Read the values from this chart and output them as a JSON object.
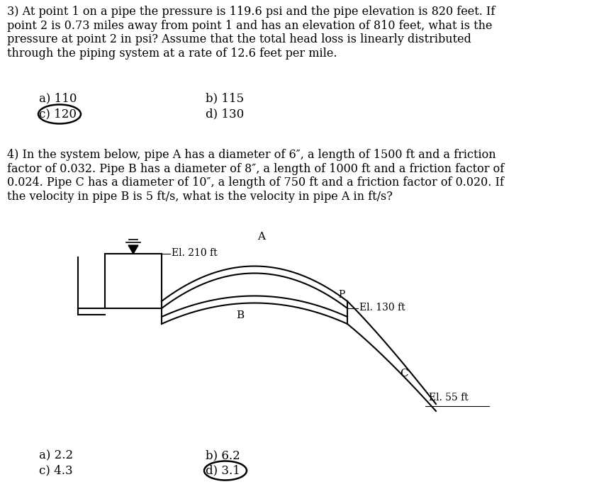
{
  "bg_color": "#ffffff",
  "q3_text": "3) At point 1 on a pipe the pressure is 119.6 psi and the pipe elevation is 820 feet. If\npoint 2 is 0.73 miles away from point 1 and has an elevation of 810 feet, what is the\npressure at point 2 in psi? Assume that the total head loss is linearly distributed\nthrough the piping system at a rate of 12.6 feet per mile.",
  "q4_text": "4) In the system below, pipe A has a diameter of 6″, a length of 1500 ft and a friction\nfactor of 0.032. Pipe B has a diameter of 8″, a length of 1000 ft and a friction factor of\n0.024. Pipe C has a diameter of 10″, a length of 750 ft and a friction factor of 0.020. If\nthe velocity in pipe B is 5 ft/s, what is the velocity in pipe A in ft/s?",
  "el_210": "El. 210 ft",
  "el_130": "El. 130 ft",
  "el_55": "El. 55 ft",
  "label_A": "A",
  "label_B": "B",
  "label_P": "P",
  "label_C": "C",
  "font_size_body": 11.5,
  "font_size_ans": 12,
  "font_size_diagram": 10,
  "diagram_color": "#000000",
  "q3_a": "a) 110",
  "q3_b": "b) 115",
  "q3_c": "c) 120",
  "q3_d": "d) 130",
  "q4_a": "a) 2.2",
  "q4_b": "b) 6.2",
  "q4_c": "c) 4.3",
  "q4_d": "d) 3.1",
  "lw": 1.5
}
